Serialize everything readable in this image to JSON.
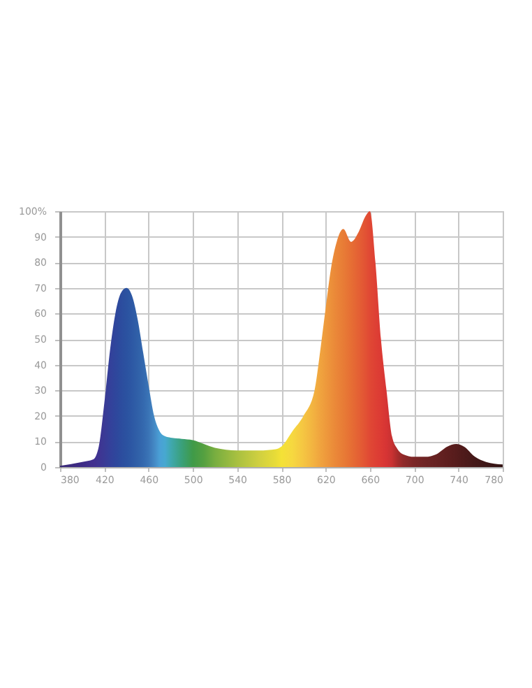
{
  "chart_data": {
    "type": "area",
    "x": [
      380,
      400,
      410,
      415,
      420,
      425,
      430,
      435,
      440,
      445,
      450,
      455,
      460,
      465,
      470,
      475,
      480,
      490,
      500,
      510,
      520,
      540,
      560,
      575,
      580,
      590,
      600,
      610,
      615,
      620,
      625,
      630,
      636,
      643,
      650,
      656,
      660,
      665,
      670,
      675,
      680,
      685,
      690,
      700,
      710,
      720,
      730,
      738,
      745,
      755,
      765,
      780
    ],
    "values": [
      0.5,
      2,
      3,
      8,
      25,
      45,
      60,
      68,
      70,
      67,
      58,
      45,
      32,
      20,
      14,
      12,
      11.5,
      11,
      10.5,
      9,
      7.5,
      6.5,
      6.5,
      7,
      8,
      14,
      20,
      30,
      45,
      62,
      78,
      88,
      93,
      88,
      92,
      98,
      100,
      80,
      50,
      30,
      12,
      7,
      5,
      4,
      4,
      5,
      8,
      9,
      8,
      4,
      2,
      1
    ],
    "colors": [
      "#3a2a78",
      "#3d2a85",
      "#42308f",
      "#3f3492",
      "#3a3a95",
      "#34409a",
      "#2f469c",
      "#2c4c9e",
      "#2b52a0",
      "#2d58a4",
      "#3060a8",
      "#3468ae",
      "#3a74b6",
      "#4488c4",
      "#4aa0d6",
      "#47a8d0",
      "#40a8b0",
      "#3aa07a",
      "#3f9a48",
      "#55a040",
      "#78ae40",
      "#a8c040",
      "#d0d040",
      "#e8dc38",
      "#f4e236",
      "#f6d840",
      "#f5c542",
      "#f2b040",
      "#f0a43e",
      "#ee9a3c",
      "#ec903a",
      "#ea8638",
      "#e87c36",
      "#e66e34",
      "#e46034",
      "#e25234",
      "#e04834",
      "#de4034",
      "#dc3a34",
      "#d63434",
      "#c83232",
      "#a82c2c",
      "#902a2a",
      "#7a2626",
      "#6e2424",
      "#662222",
      "#5e1e1e",
      "#561c1c",
      "#4e1a1a",
      "#441818",
      "#3c1616",
      "#321212"
    ],
    "xlim": [
      380,
      780
    ],
    "xticks": [
      380,
      420,
      460,
      500,
      540,
      580,
      620,
      660,
      700,
      740,
      780
    ],
    "ylim": [
      0,
      100
    ],
    "yticks": [
      0,
      10,
      20,
      30,
      40,
      50,
      60,
      70,
      80,
      90,
      {
        "value": 100,
        "label": "100%"
      }
    ],
    "grid": true
  }
}
